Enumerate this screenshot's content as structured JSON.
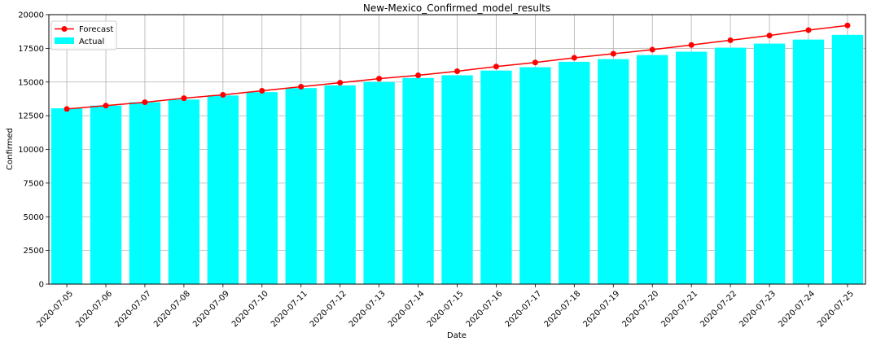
{
  "chart_data": {
    "type": "bar",
    "title": "New-Mexico_Confirmed_model_results",
    "xlabel": "Date",
    "ylabel": "Confirmed",
    "ylim": [
      0,
      20000
    ],
    "yticks": [
      0,
      2500,
      5000,
      7500,
      10000,
      12500,
      15000,
      17500,
      20000
    ],
    "grid": true,
    "legend_position": "top-left",
    "categories": [
      "2020-07-05",
      "2020-07-06",
      "2020-07-07",
      "2020-07-08",
      "2020-07-09",
      "2020-07-10",
      "2020-07-11",
      "2020-07-12",
      "2020-07-13",
      "2020-07-14",
      "2020-07-15",
      "2020-07-16",
      "2020-07-17",
      "2020-07-18",
      "2020-07-19",
      "2020-07-20",
      "2020-07-21",
      "2020-07-22",
      "2020-07-23",
      "2020-07-24",
      "2020-07-25"
    ],
    "series": [
      {
        "name": "Actual",
        "kind": "bar",
        "color": "#00ffff",
        "values": [
          13050,
          13250,
          13500,
          13700,
          14000,
          14250,
          14550,
          14750,
          15000,
          15300,
          15500,
          15850,
          16100,
          16500,
          16700,
          17000,
          17250,
          17550,
          17850,
          18150,
          18500
        ]
      },
      {
        "name": "Forecast",
        "kind": "line",
        "color": "#ff0000",
        "values": [
          13000,
          13250,
          13500,
          13800,
          14050,
          14350,
          14650,
          14950,
          15250,
          15500,
          15800,
          16150,
          16450,
          16800,
          17100,
          17400,
          17750,
          18100,
          18450,
          18850,
          19200
        ]
      }
    ]
  }
}
